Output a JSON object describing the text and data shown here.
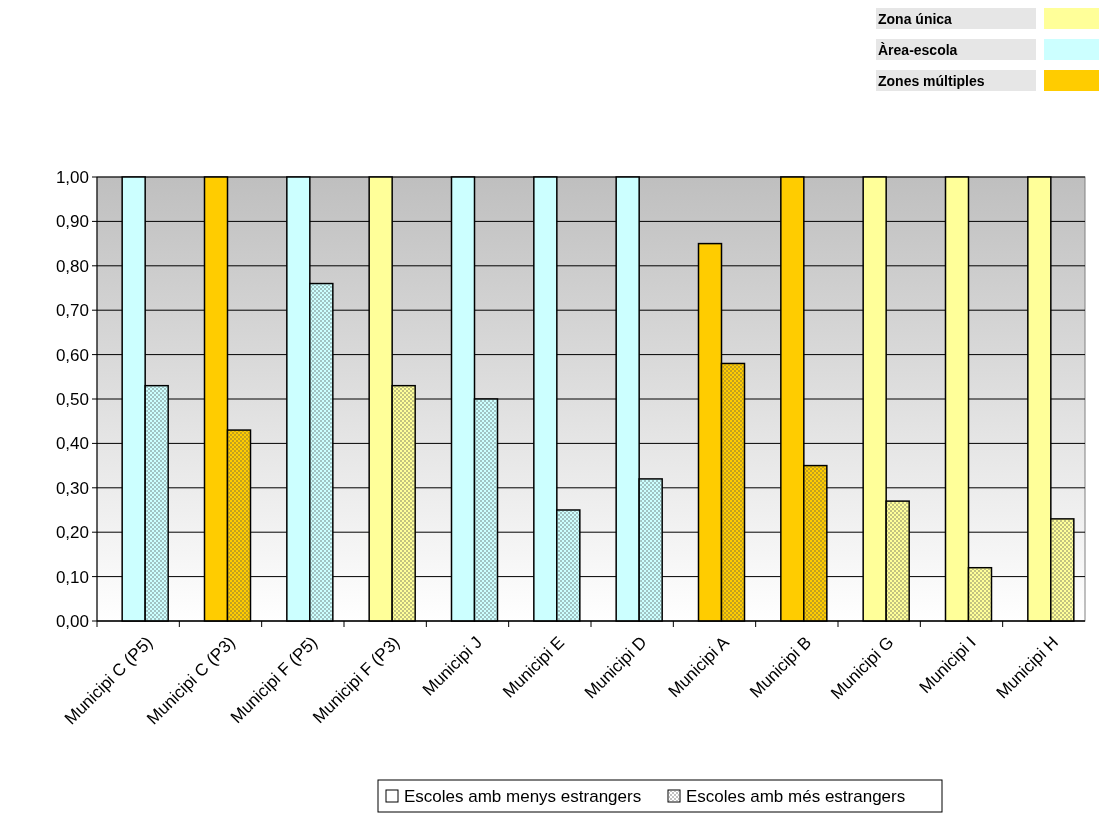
{
  "chart_data": {
    "type": "bar",
    "categories": [
      "Municipi C (P5)",
      "Municipi C (P3)",
      "Municipi F (P5)",
      "Municipi F (P3)",
      "Municipi J",
      "Municipi E",
      "Municipi D",
      "Municipi A",
      "Municipi B",
      "Municipi G",
      "Municipi I",
      "Municipi H"
    ],
    "series": [
      {
        "name": "Escoles amb menys estrangers",
        "color": "#ffffff",
        "values": [
          1,
          1,
          1,
          1,
          1,
          1,
          1,
          0.85,
          1,
          1,
          1,
          1
        ],
        "colors": [
          "#ccffff",
          "#ffcc00",
          "#ccffff",
          "#ffff99",
          "#ccffff",
          "#ccffff",
          "#ccffff",
          "#ffcc00",
          "#ffcc00",
          "#ffff99",
          "#ffff99",
          "#ffff99"
        ]
      },
      {
        "name": "Escoles amb més estrangers",
        "color": "#ffffff",
        "values": [
          0.53,
          0.43,
          0.76,
          0.53,
          0.5,
          0.25,
          0.32,
          0.58,
          0.35,
          0.27,
          0.12,
          0.23
        ],
        "colors": [
          "#ccffff",
          "#ffcc00",
          "#ccffff",
          "#ffff99",
          "#ccffff",
          "#ccffff",
          "#ccffff",
          "#ffcc00",
          "#ffcc00",
          "#ffff99",
          "#ffff99",
          "#ffff99"
        ]
      }
    ],
    "annotations": [
      "Zona única",
      "Àrea-escola",
      "Zones múltiples"
    ],
    "ylim": [
      0,
      1
    ],
    "yticks": [
      {
        "value": 0,
        "label": "0,00"
      },
      {
        "value": 0.1,
        "label": "0,10"
      },
      {
        "value": 0.2,
        "label": "0,20"
      },
      {
        "value": 0.3,
        "label": "0,30"
      },
      {
        "value": 0.4,
        "label": "0,40"
      },
      {
        "value": 0.5,
        "label": "0,50"
      },
      {
        "value": 0.6,
        "label": "0,60"
      },
      {
        "value": 0.7,
        "label": "0,70"
      },
      {
        "value": 0.8,
        "label": "0,80"
      },
      {
        "value": 0.9,
        "label": "0,90"
      },
      {
        "value": 1,
        "label": "1,00"
      }
    ],
    "grid": "y",
    "legend": "bottom"
  }
}
